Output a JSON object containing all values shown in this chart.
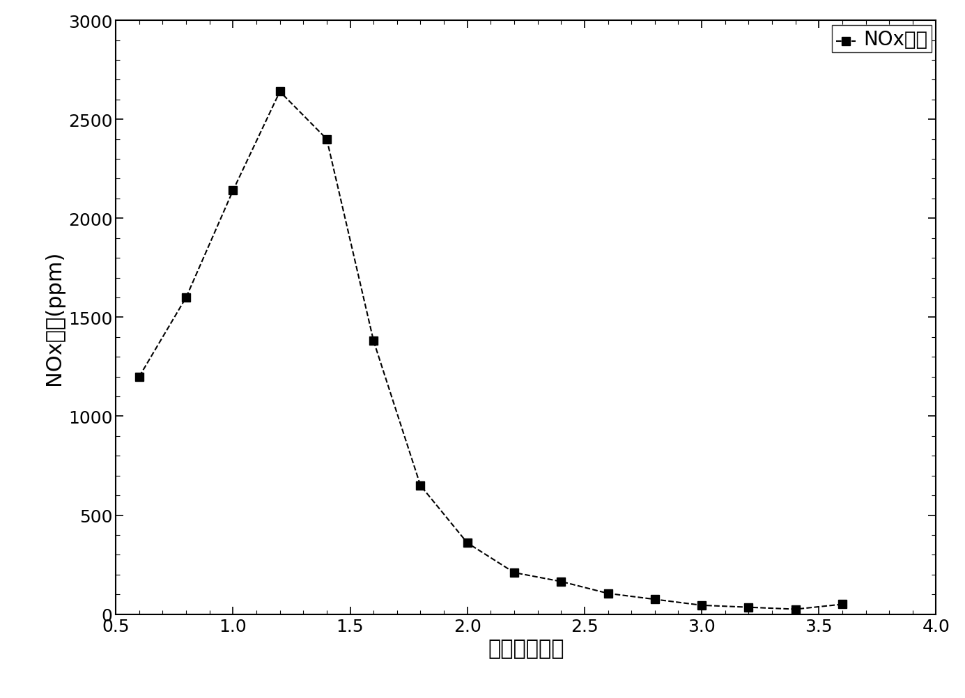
{
  "x": [
    0.6,
    0.8,
    1.0,
    1.2,
    1.4,
    1.6,
    1.8,
    2.0,
    2.2,
    2.4,
    2.6,
    2.8,
    3.0,
    3.2,
    3.4,
    3.6
  ],
  "y": [
    1200,
    1600,
    2140,
    2640,
    2400,
    1380,
    650,
    360,
    210,
    165,
    105,
    75,
    45,
    35,
    25,
    50
  ],
  "xlabel": "过量空气系数",
  "ylabel": "NOx排放(ppm)",
  "xlim": [
    0.5,
    4.0
  ],
  "ylim": [
    0,
    3000
  ],
  "xticks": [
    0.5,
    1.0,
    1.5,
    2.0,
    2.5,
    3.0,
    3.5,
    4.0
  ],
  "yticks": [
    0,
    500,
    1000,
    1500,
    2000,
    2500,
    3000
  ],
  "legend_label": "NOx排放",
  "line_color": "#000000",
  "marker": "s",
  "marker_color": "#000000",
  "linestyle": "--",
  "linewidth": 1.5,
  "markersize": 8,
  "background_color": "#ffffff",
  "grid": false,
  "tick_fontsize": 18,
  "label_fontsize": 22,
  "legend_fontsize": 20
}
